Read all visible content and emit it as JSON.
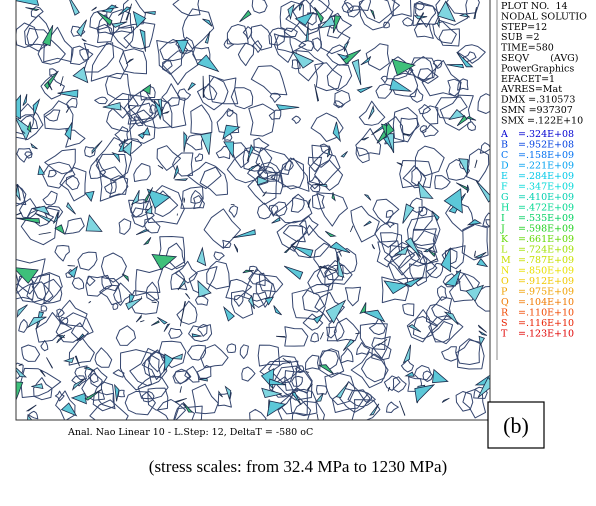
{
  "info_lines": [
    "PLOT NO.  14",
    "NODAL SOLUTIO",
    "STEP=12",
    "SUB =2",
    "TIME=580",
    "SEQV       (AVG)",
    "PowerGraphics",
    "EFACET=1",
    "AVRES=Mat",
    "DMX =.310573",
    "SMN =937307",
    "SMX =.122E+10"
  ],
  "legend": [
    {
      "letter": "A",
      "label": "=.324E+08",
      "color": "#0000d0"
    },
    {
      "letter": "B",
      "label": "=.952E+08",
      "color": "#0040e0"
    },
    {
      "letter": "C",
      "label": "=.158E+09",
      "color": "#0070f0"
    },
    {
      "letter": "D",
      "label": "=.221E+09",
      "color": "#00a0f0"
    },
    {
      "letter": "E",
      "label": "=.284E+09",
      "color": "#00c8e8"
    },
    {
      "letter": "F",
      "label": "=.347E+09",
      "color": "#00d8d8"
    },
    {
      "letter": "G",
      "label": "=.410E+09",
      "color": "#00d0b0"
    },
    {
      "letter": "H",
      "label": "=.472E+09",
      "color": "#00d890"
    },
    {
      "letter": "I",
      "label": "=.535E+09",
      "color": "#00d060"
    },
    {
      "letter": "J",
      "label": "=.598E+09",
      "color": "#20d020"
    },
    {
      "letter": "K",
      "label": "=.661E+09",
      "color": "#60d800"
    },
    {
      "letter": "L",
      "label": "=.724E+09",
      "color": "#a0e000"
    },
    {
      "letter": "M",
      "label": "=.787E+09",
      "color": "#c8e000"
    },
    {
      "letter": "N",
      "label": "=.850E+09",
      "color": "#e8e000"
    },
    {
      "letter": "O",
      "label": "=.912E+09",
      "color": "#f0c800"
    },
    {
      "letter": "P",
      "label": "=.975E+09",
      "color": "#f0a000"
    },
    {
      "letter": "Q",
      "label": "=.104E+10",
      "color": "#f07800"
    },
    {
      "letter": "R",
      "label": "=.110E+10",
      "color": "#f04800"
    },
    {
      "letter": "S",
      "label": "=.116E+10",
      "color": "#e82000"
    },
    {
      "letter": "T",
      "label": "=.123E+10",
      "color": "#e00000"
    }
  ],
  "footer": "Anal. Nao Linear 10 - L.Step: 12, DeltaT = -580 oC",
  "panel_label": "(b)",
  "caption": "(stress scales: from 32.4 MPa to 1230 MPa)"
}
